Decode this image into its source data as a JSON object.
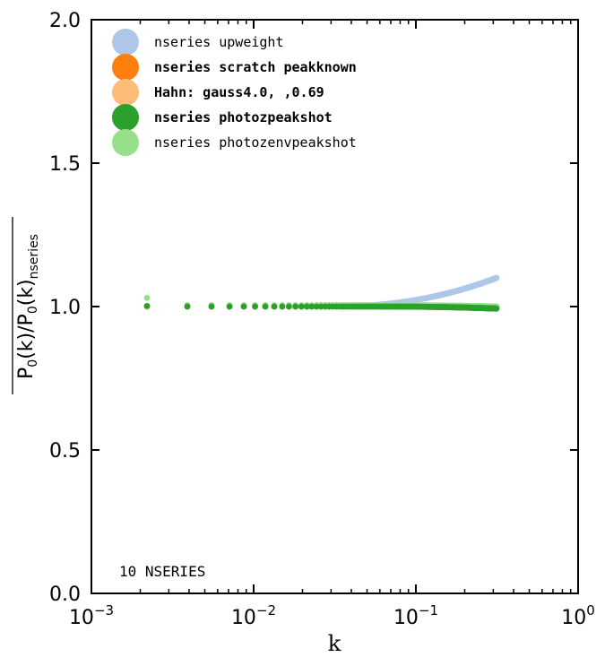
{
  "chart_data": {
    "type": "scatter",
    "title": "",
    "xlabel": "k",
    "ylabel": "P0(k) / P0(k)nseries",
    "ylabel_parts": {
      "p": "P",
      "sub0": "0",
      "k": "(k)",
      "slash": "/",
      "sub_ref": "nseries"
    },
    "xscale": "log",
    "xlim": [
      0.001,
      1
    ],
    "ylim": [
      0.0,
      2.0
    ],
    "yticks": [
      0.0,
      0.5,
      1.0,
      1.5,
      2.0
    ],
    "ytick_labels": [
      "0.0",
      "0.5",
      "1.0",
      "1.5",
      "2.0"
    ],
    "xticks": [
      0.001,
      0.01,
      0.1,
      1
    ],
    "xtick_labels": [
      {
        "base": "10",
        "exp": "−3"
      },
      {
        "base": "10",
        "exp": "−2"
      },
      {
        "base": "10",
        "exp": "−1"
      },
      {
        "base": "10",
        "exp": "0"
      }
    ],
    "grid": false,
    "legend_position": "top-left",
    "annotation": "10 NSERIES",
    "x": [
      0.0022,
      0.0039,
      0.0055,
      0.0071,
      0.0087,
      0.0102,
      0.0118,
      0.0134,
      0.015,
      0.0165,
      0.0181,
      0.0197,
      0.0213,
      0.0228,
      0.0244,
      0.026,
      0.0276,
      0.0291,
      0.0307,
      0.0323,
      0.0339,
      0.0354,
      0.037,
      0.0386,
      0.0402,
      0.0417,
      0.0433,
      0.0449,
      0.0465,
      0.048,
      0.0496,
      0.0512,
      0.0528,
      0.0543,
      0.0559,
      0.0575,
      0.0591,
      0.0606,
      0.0622,
      0.0638,
      0.0654,
      0.0669,
      0.0685,
      0.0701,
      0.0717,
      0.0732,
      0.0748,
      0.0764,
      0.078,
      0.0795,
      0.0811,
      0.0827,
      0.0843,
      0.0858,
      0.0874,
      0.089,
      0.0906,
      0.0921,
      0.0937,
      0.0953,
      0.0969,
      0.0984,
      0.1,
      0.1016,
      0.1032,
      0.1047,
      0.1063,
      0.1079,
      0.1095,
      0.111,
      0.1126,
      0.1142,
      0.1158,
      0.1173,
      0.1189,
      0.1205,
      0.1221,
      0.1236,
      0.1252,
      0.1268,
      0.1284,
      0.1299,
      0.1315,
      0.1331,
      0.1347,
      0.1362,
      0.1378,
      0.1394,
      0.141,
      0.1425,
      0.1441,
      0.1457,
      0.1473,
      0.1488,
      0.1504,
      0.152,
      0.1536,
      0.1551,
      0.1567,
      0.1583,
      0.1599,
      0.1614,
      0.163,
      0.1646,
      0.1662,
      0.1677,
      0.1693,
      0.1709,
      0.1725,
      0.174,
      0.1756,
      0.1772,
      0.1788,
      0.1803,
      0.1819,
      0.1835,
      0.1851,
      0.1866,
      0.1882,
      0.1898,
      0.1914,
      0.1929,
      0.1945,
      0.1961,
      0.1977,
      0.1992,
      0.2008,
      0.2024,
      0.204,
      0.2055,
      0.2071,
      0.2087,
      0.2103,
      0.2118,
      0.2134,
      0.215,
      0.2166,
      0.2181,
      0.2197,
      0.2213,
      0.2229,
      0.2244,
      0.226,
      0.2276,
      0.2292,
      0.2307,
      0.2323,
      0.2339,
      0.2355,
      0.237,
      0.2386,
      0.2402,
      0.2418,
      0.2433,
      0.2449,
      0.2465,
      0.2481,
      0.2496,
      0.2512,
      0.2528,
      0.2544,
      0.2559,
      0.2575,
      0.2591,
      0.2607,
      0.2622,
      0.2638,
      0.2654,
      0.267,
      0.2685,
      0.2701,
      0.2717,
      0.2733,
      0.2748,
      0.2764,
      0.278,
      0.2796,
      0.2811,
      0.2827,
      0.2843,
      0.2859,
      0.2874,
      0.289,
      0.2906,
      0.2922,
      0.2937,
      0.2953,
      0.2969,
      0.2985,
      0.3,
      0.3016,
      0.3032,
      0.3048,
      0.3063,
      0.3079,
      0.3095,
      0.3111,
      0.3126,
      0.3142
    ],
    "series": [
      {
        "name": "nseries upweight",
        "color": "#aec7e8",
        "legend_weight": "normal",
        "trend": {
          "base": 1.0,
          "rise_start": 0.03,
          "rise_end": 0.314,
          "end_value": 1.1
        }
      },
      {
        "name": "nseries scratch peakknown",
        "color": "#ff7f0e",
        "legend_weight": "bold",
        "trend": {
          "base": 1.0,
          "rise_start": 0.05,
          "rise_end": 0.314,
          "end_value": 1.0
        }
      },
      {
        "name": "Hahn:  gauss4.0, ,0.69",
        "color": "#ffbb78",
        "legend_weight": "bold",
        "trend": {
          "base": 1.0,
          "rise_start": 0.05,
          "rise_end": 0.314,
          "end_value": 1.0
        }
      },
      {
        "name": "nseries photozpeakshot",
        "color": "#2ca02c",
        "legend_weight": "bold",
        "first_value": 1.002,
        "trend": {
          "base": 1.0,
          "rise_start": 0.06,
          "rise_end": 0.314,
          "end_value": 0.993
        }
      },
      {
        "name": "nseries photozenvpeakshot",
        "color": "#98df8a",
        "legend_weight": "normal",
        "first_value": 1.03,
        "trend": {
          "base": 1.005,
          "rise_start": 0.05,
          "rise_end": 0.314,
          "end_value": 1.0
        }
      }
    ]
  }
}
